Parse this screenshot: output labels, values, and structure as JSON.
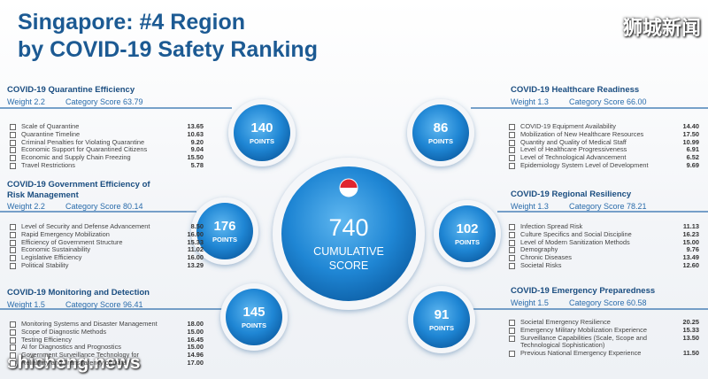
{
  "header": {
    "title_lines": [
      "Singapore: #4 Region",
      "by COVID-19 Safety Ranking"
    ],
    "watermark_top": "狮城新闻",
    "watermark_bottom": "shicheng.news"
  },
  "center": {
    "score": "740",
    "label_lines": [
      "CUMULATIVE",
      "SCORE"
    ]
  },
  "points_label": "POINTS",
  "sections": [
    {
      "title": "COVID-19 Quarantine Efficiency",
      "weight": "Weight 2.2",
      "category_score": "Category Score 63.79",
      "points": "140",
      "items": [
        [
          "Scale of Quarantine",
          "13.65"
        ],
        [
          "Quarantine Timeline",
          "10.63"
        ],
        [
          "Criminal Penalties for Violating Quarantine",
          "9.20"
        ],
        [
          "Economic Support for Quarantined Citizens",
          "9.04"
        ],
        [
          "Economic and Supply Chain Freezing",
          "15.50"
        ],
        [
          "Travel Restrictions",
          "5.78"
        ]
      ]
    },
    {
      "title": "COVID-19 Government Efficiency of Risk Management",
      "weight": "Weight 2.2",
      "category_score": "Category Score 80.14",
      "points": "176",
      "items": [
        [
          "Level of Security and Defense Advancement",
          "8.50"
        ],
        [
          "Rapid Emergency Mobilization",
          "16.00"
        ],
        [
          "Efficiency of Government Structure",
          "15.33"
        ],
        [
          "Economic Sustainability",
          "11.02"
        ],
        [
          "Legislative Efficiency",
          "16.00"
        ],
        [
          "Political Stability",
          "13.29"
        ]
      ]
    },
    {
      "title": "COVID-19 Monitoring and Detection",
      "weight": "Weight 1.5",
      "category_score": "Category Score 96.41",
      "points": "145",
      "items": [
        [
          "Monitoring Systems and Disaster Management",
          "18.00"
        ],
        [
          "Scope of Diagnostic Methods",
          "15.00"
        ],
        [
          "Testing Efficiency",
          "16.45"
        ],
        [
          "AI for Diagnostics and Prognostics",
          "15.00"
        ],
        [
          "Government Surveillance Technology for",
          "14.96"
        ],
        [
          "Reliability and Transparency of Data",
          "17.00"
        ]
      ]
    },
    {
      "title": "COVID-19 Healthcare Readiness",
      "weight": "Weight 1.3",
      "category_score": "Category Score 66.00",
      "points": "86",
      "items": [
        [
          "COVID-19 Equipment Availability",
          "14.40"
        ],
        [
          "Mobilization of New Healthcare Resources",
          "17.50"
        ],
        [
          "Quantity and Quality of Medical Staff",
          "10.99"
        ],
        [
          "Level of Healthcare Progressiveness",
          "6.91"
        ],
        [
          "Level of Technological Advancement",
          "6.52"
        ],
        [
          "Epidemiology System Level of Development",
          "9.69"
        ]
      ]
    },
    {
      "title": "COVID-19 Regional Resiliency",
      "weight": "Weight 1.3",
      "category_score": "Category Score 78.21",
      "points": "102",
      "items": [
        [
          "Infection Spread Risk",
          "11.13"
        ],
        [
          "Culture Specifics and Social Discipline",
          "16.23"
        ],
        [
          "Level of Modern Sanitization Methods",
          "15.00"
        ],
        [
          "Demography",
          "9.76"
        ],
        [
          "Chronic Diseases",
          "13.49"
        ],
        [
          "Societal Risks",
          "12.60"
        ]
      ]
    },
    {
      "title": "COVID-19 Emergency Preparedness",
      "weight": "Weight 1.5",
      "category_score": "Category Score 60.58",
      "points": "91",
      "items": [
        [
          "Societal Emergency Resilience",
          "20.25"
        ],
        [
          "Emergency Military Mobilization Experience",
          "15.33"
        ],
        [
          "Surveillance Capabilities (Scale, Scope and Technological Sophistication)",
          "13.50"
        ],
        [
          "Previous National Emergency Experience",
          "11.50"
        ]
      ]
    }
  ]
}
